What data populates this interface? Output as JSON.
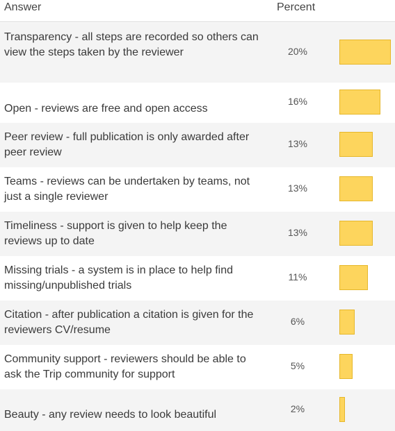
{
  "header": {
    "answer": "Answer",
    "percent": "Percent"
  },
  "chart_data": {
    "type": "bar",
    "categories": [
      "Transparency - all steps are recorded so others can view the steps taken by the reviewer",
      "Open - reviews are free and open access",
      "Peer review - full publication is only awarded after peer review",
      "Teams - reviews can be undertaken by teams, not just a single reviewer",
      "Timeliness - support is given to help keep the reviews up to date",
      "Missing trials - a system is in place to help find missing/unpublished trials",
      "Citation - after publication a citation is given for the reviewers CV/resume",
      "Community support - reviewers should be able to ask the Trip community for support",
      "Beauty - any review needs to look beautiful"
    ],
    "values": [
      20,
      16,
      13,
      13,
      13,
      11,
      6,
      5,
      2
    ],
    "labels": [
      "20%",
      "16%",
      "13%",
      "13%",
      "13%",
      "11%",
      "6%",
      "5%",
      "2%"
    ],
    "xlabel": "Answer",
    "ylabel": "Percent",
    "bar_color": "#fdd55d"
  }
}
